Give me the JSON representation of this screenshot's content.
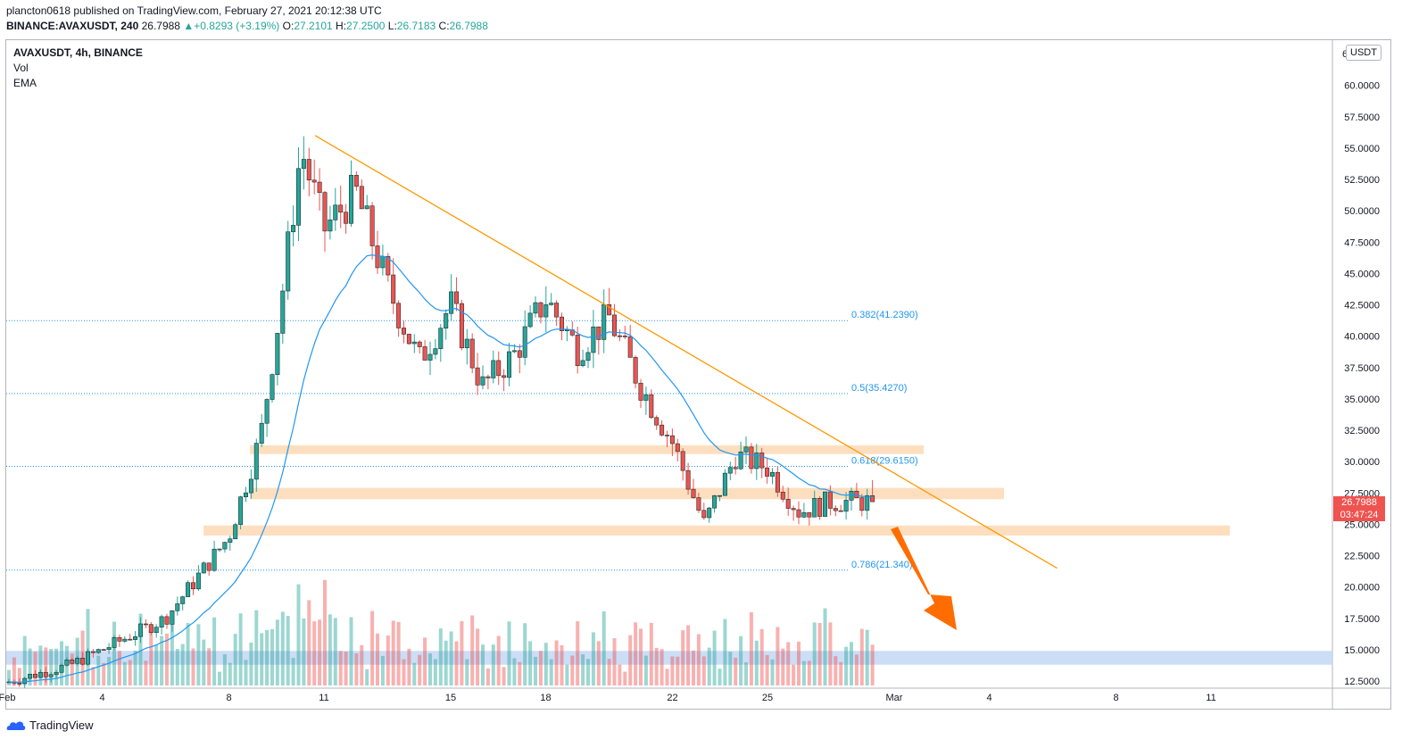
{
  "header": {
    "publisher_line": "plancton0618 published on TradingView.com, February 27, 2021 20:12:38 UTC",
    "symbol": "BINANCE:AVAXUSDT, 240",
    "last": "26.7988",
    "change": "+0.8293 (+3.19%)",
    "o_label": "O:",
    "o": "27.2101",
    "h_label": "H:",
    "h": "27.2500",
    "l_label": "L:",
    "l": "26.7183",
    "c_label": "C:",
    "c": "26.7988"
  },
  "legend": {
    "title": "AVAXUSDT, 4h, BINANCE",
    "vol": "Vol",
    "ema": "EMA"
  },
  "price_axis": {
    "unit": "USDT",
    "top_clipped_label": "6",
    "badge_price": "26.7988",
    "badge_countdown": "03:47:24"
  },
  "footer": {
    "brand": "TradingView"
  },
  "colors": {
    "up": "#26a69a",
    "down": "#ef5350",
    "ema": "#2196f3",
    "trend": "#ff9800",
    "zone": "#fdd9b5",
    "fib": "#2196f3",
    "arrow": "#ff6d00",
    "volume_zone": "#c7d9f5"
  },
  "chart_data": {
    "type": "candlestick",
    "y_ticks": [
      "12.5000",
      "15.0000",
      "17.5000",
      "20.0000",
      "22.5000",
      "25.0000",
      "27.5000",
      "30.0000",
      "32.5000",
      "35.0000",
      "37.5000",
      "40.0000",
      "42.5000",
      "45.0000",
      "47.5000",
      "50.0000",
      "52.5000",
      "55.0000",
      "57.5000",
      "60.0000"
    ],
    "x_ticks": [
      "Feb",
      "4",
      "8",
      "11",
      "15",
      "18",
      "22",
      "25",
      "Mar",
      "4",
      "8",
      "11"
    ],
    "ylim": [
      11.5,
      63.5
    ],
    "key_points": [
      {
        "x": "Feb 1",
        "close": 12.4
      },
      {
        "x": "Feb 3",
        "close": 13.8
      },
      {
        "x": "Feb 4",
        "close": 15.0
      },
      {
        "x": "Feb 6",
        "close": 17.5
      },
      {
        "x": "Feb 8",
        "close": 24.0
      },
      {
        "x": "Feb 9",
        "close": 32.0
      },
      {
        "x": "Feb 10",
        "close": 42.0
      },
      {
        "x": "Feb 10",
        "close": 55.0
      },
      {
        "x": "Feb 11",
        "close": 48.5
      },
      {
        "x": "Feb 12",
        "close": 51.5
      },
      {
        "x": "Feb 13",
        "close": 44.0
      },
      {
        "x": "Feb 14",
        "close": 38.0
      },
      {
        "x": "Feb 15",
        "close": 42.5
      },
      {
        "x": "Feb 16",
        "close": 36.0
      },
      {
        "x": "Feb 17",
        "close": 38.5
      },
      {
        "x": "Feb 18",
        "close": 43.0
      },
      {
        "x": "Feb 19",
        "close": 39.0
      },
      {
        "x": "Feb 20",
        "close": 41.5
      },
      {
        "x": "Feb 21",
        "close": 36.0
      },
      {
        "x": "Feb 22",
        "close": 31.5
      },
      {
        "x": "Feb 23",
        "close": 25.0
      },
      {
        "x": "Feb 24",
        "close": 30.5
      },
      {
        "x": "Feb 25",
        "close": 29.5
      },
      {
        "x": "Feb 26",
        "close": 26.0
      },
      {
        "x": "Feb 27",
        "close": 26.7988
      }
    ],
    "fibonacci": [
      {
        "label": "0.382(41.2390)",
        "price": 41.239
      },
      {
        "label": "0.5(35.4270)",
        "price": 35.427
      },
      {
        "label": "0.618(29.6150)",
        "price": 29.615
      },
      {
        "label": "0.786(21.340)",
        "price": 21.34
      }
    ],
    "support_zones": [
      [
        30.6,
        31.3
      ],
      [
        27.0,
        27.9
      ],
      [
        24.1,
        24.9
      ]
    ],
    "trendline": [
      {
        "x": "Feb 11",
        "price": 56.0
      },
      {
        "x": "Mar 6",
        "price": 21.5
      }
    ],
    "volume_zone_price": [
      13.8,
      14.9
    ]
  }
}
